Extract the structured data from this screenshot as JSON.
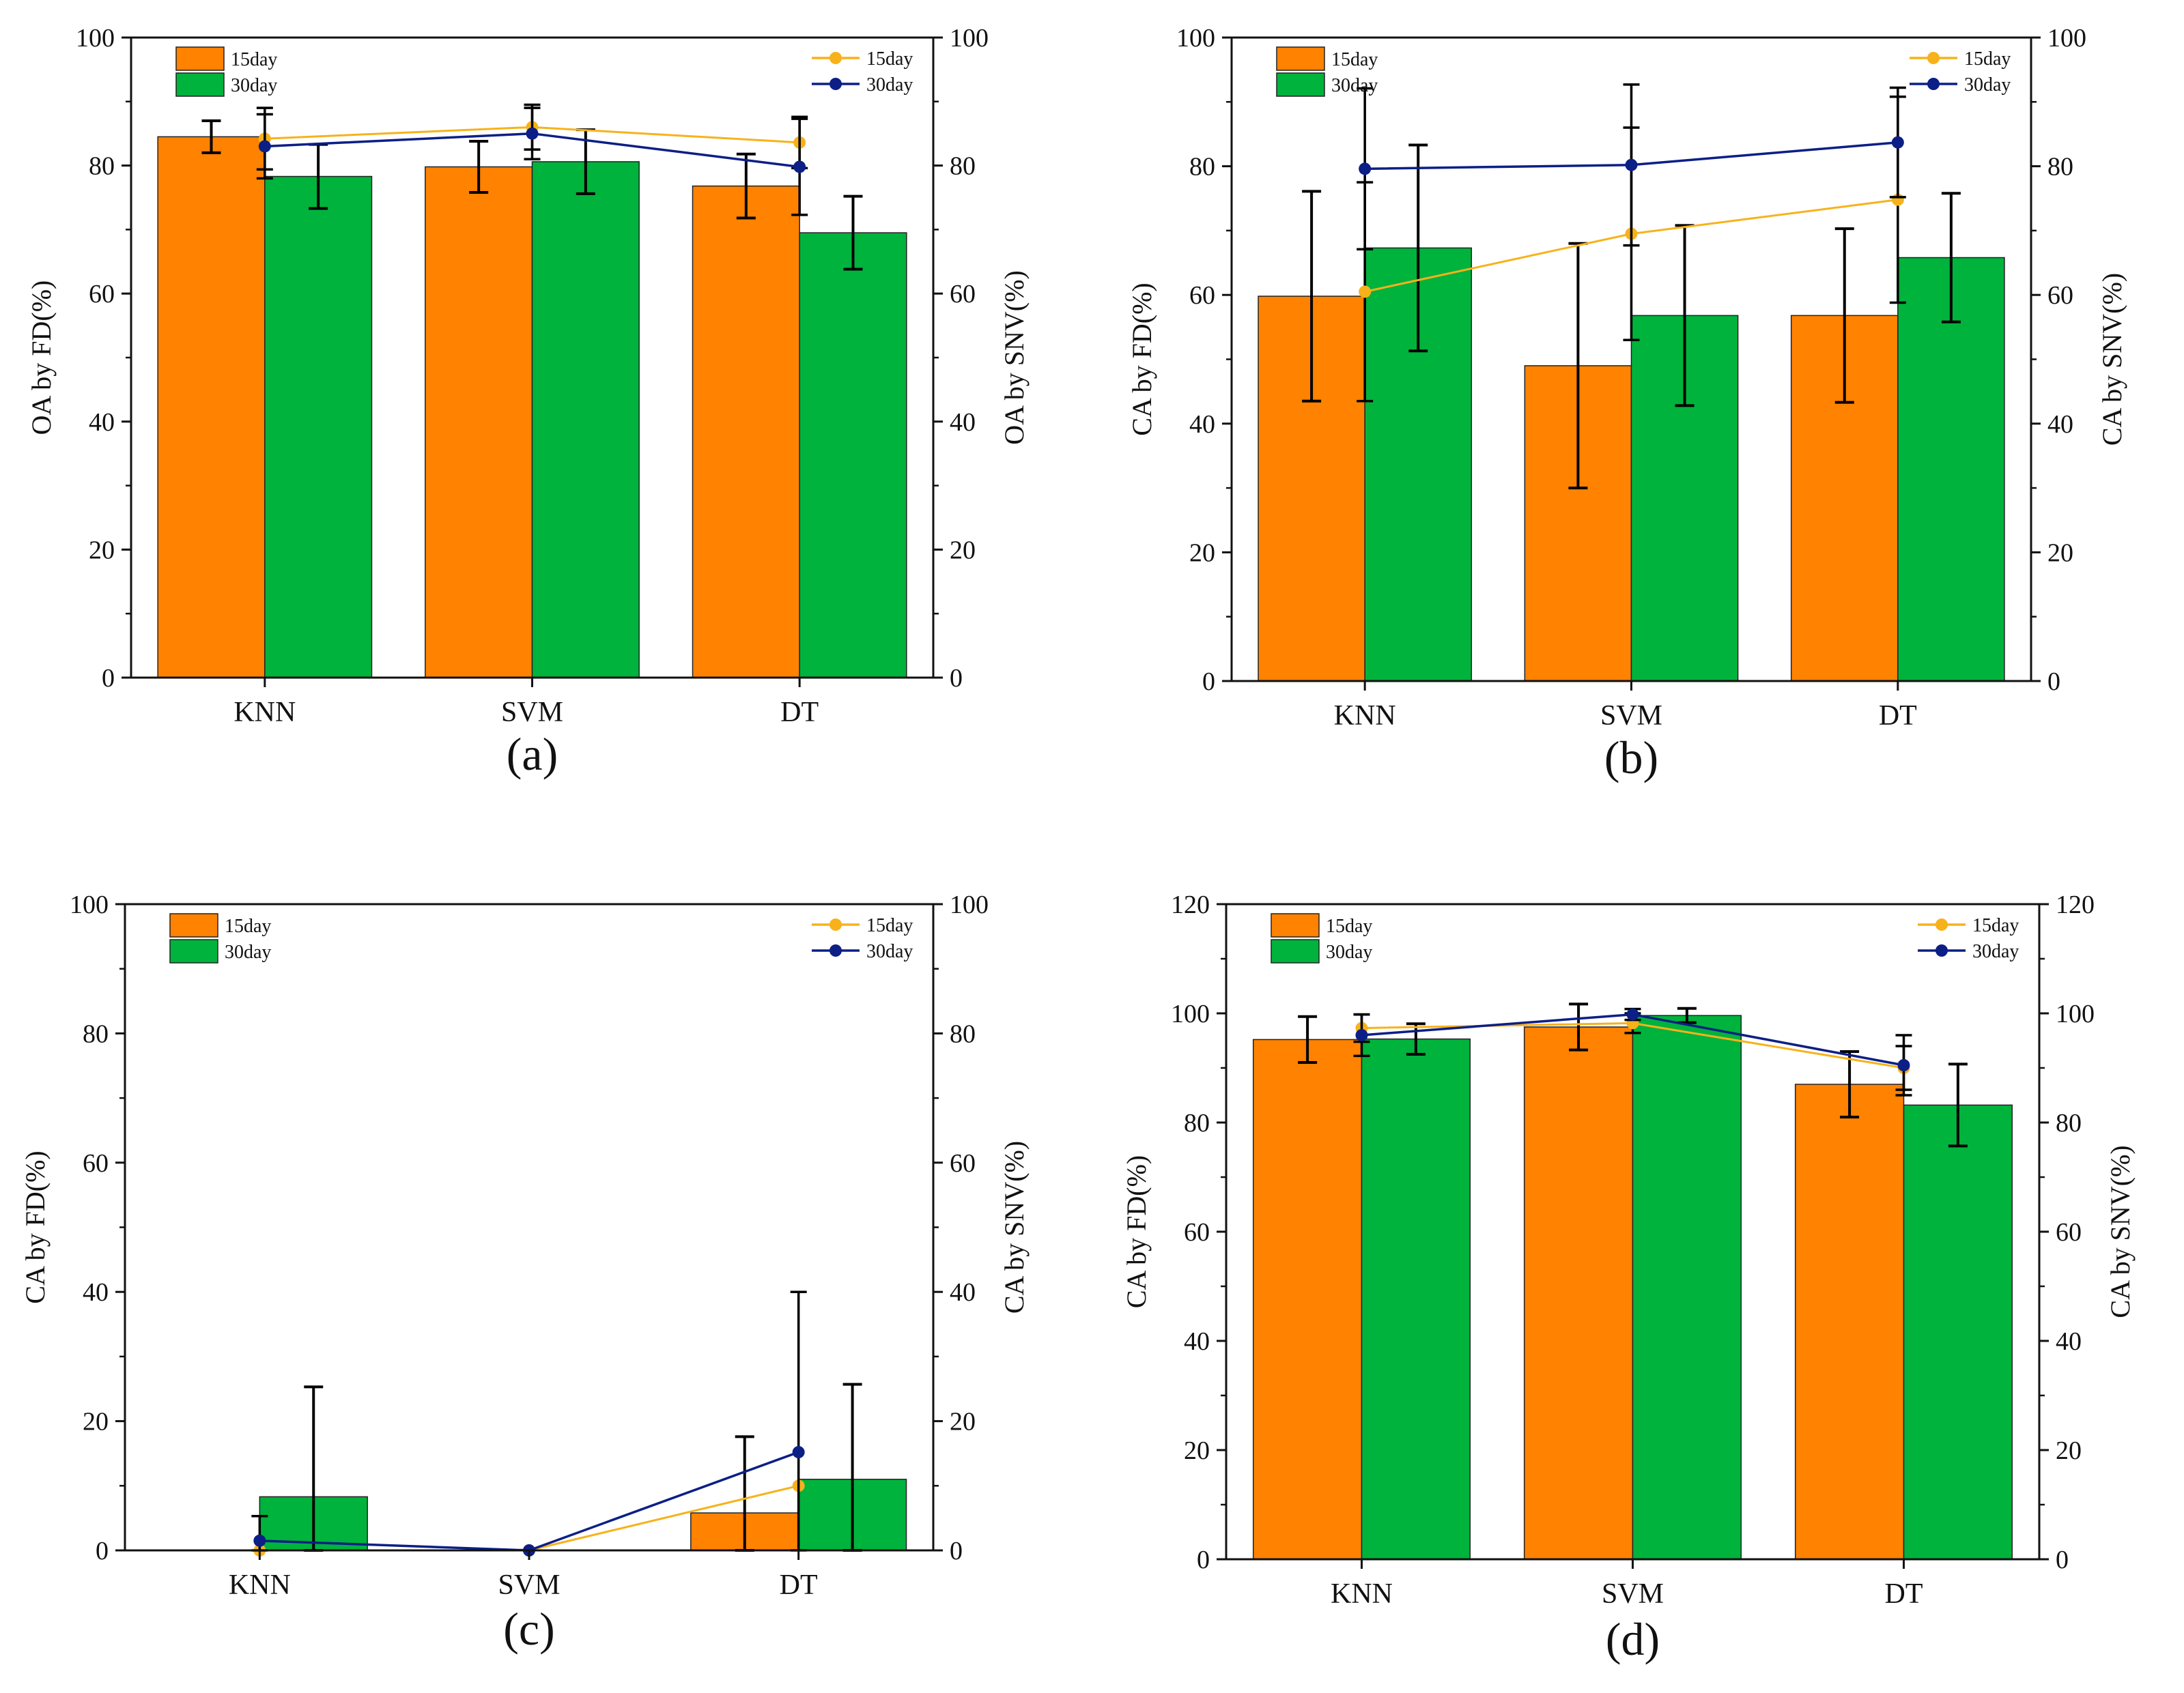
{
  "colors": {
    "bar_15": "#ff8200",
    "bar_30": "#00b33c",
    "line_15": "#f7b21b",
    "line_30": "#0c1f86",
    "axis": "#111111"
  },
  "chart_data": [
    {
      "type": "bar",
      "panel_label": "(a)",
      "categories": [
        "KNN",
        "SVM",
        "DT"
      ],
      "ylabel_left": "OA by FD(%)",
      "ylabel_right": "OA by SNV(%)",
      "ylim_left": [
        0,
        100
      ],
      "ylim_right": [
        0,
        100
      ],
      "yticks": [
        0,
        20,
        40,
        60,
        80,
        100
      ],
      "bar_legend": [
        "15day",
        "30day"
      ],
      "line_legend": [
        "15day",
        "30day"
      ],
      "bar_series": [
        {
          "name": "15day",
          "values": [
            84.5,
            79.8,
            76.8
          ],
          "errors": [
            2.5,
            4.0,
            5.0
          ]
        },
        {
          "name": "30day",
          "values": [
            78.3,
            80.6,
            69.5
          ],
          "errors": [
            5.0,
            5.0,
            5.7
          ]
        }
      ],
      "line_series": [
        {
          "name": "15day",
          "values": [
            84.2,
            86.0,
            83.6
          ],
          "errors": [
            4.8,
            3.5,
            4.0
          ]
        },
        {
          "name": "30day",
          "values": [
            83.0,
            85.0,
            79.8
          ],
          "errors": [
            5.0,
            4.0,
            7.5
          ]
        }
      ]
    },
    {
      "type": "bar",
      "panel_label": "(b)",
      "categories": [
        "KNN",
        "SVM",
        "DT"
      ],
      "ylabel_left": "CA by FD(%)",
      "ylabel_right": "CA by SNV(%)",
      "ylim_left": [
        0,
        100
      ],
      "ylim_right": [
        0,
        100
      ],
      "yticks": [
        0,
        20,
        40,
        60,
        80,
        100
      ],
      "bar_legend": [
        "15day",
        "30day"
      ],
      "line_legend": [
        "15day",
        "30day"
      ],
      "bar_series": [
        {
          "name": "15day",
          "values": [
            59.8,
            49.0,
            56.8
          ],
          "errors": [
            16.3,
            19.0,
            13.5
          ]
        },
        {
          "name": "30day",
          "values": [
            67.3,
            56.8,
            65.8
          ],
          "errors": [
            16.0,
            14.0,
            10.0
          ]
        }
      ],
      "line_series": [
        {
          "name": "15day",
          "values": [
            60.5,
            69.5,
            74.8
          ],
          "errors": [
            17.0,
            16.5,
            16.0
          ]
        },
        {
          "name": "30day",
          "values": [
            79.6,
            80.2,
            83.7
          ],
          "errors": [
            12.5,
            12.5,
            8.5
          ]
        }
      ]
    },
    {
      "type": "bar",
      "panel_label": "(c)",
      "categories": [
        "KNN",
        "SVM",
        "DT"
      ],
      "ylabel_left": "CA by FD(%)",
      "ylabel_right": "CA by SNV(%)",
      "ylim_left": [
        0,
        100
      ],
      "ylim_right": [
        0,
        100
      ],
      "yticks": [
        0,
        20,
        40,
        60,
        80,
        100
      ],
      "bar_legend": [
        "15day",
        "30day"
      ],
      "line_legend": [
        "15day",
        "30day"
      ],
      "bar_series": [
        {
          "name": "15day",
          "values": [
            0,
            0,
            5.8
          ],
          "errors": [
            0,
            0,
            11.8
          ]
        },
        {
          "name": "30day",
          "values": [
            8.3,
            0,
            11.0
          ],
          "errors": [
            17.0,
            0,
            14.7
          ]
        }
      ],
      "line_series": [
        {
          "name": "15day",
          "values": [
            0,
            0,
            10.0
          ],
          "errors": [
            0,
            0,
            0
          ]
        },
        {
          "name": "30day",
          "values": [
            1.5,
            0,
            15.2
          ],
          "errors": [
            3.8,
            0,
            24.8
          ]
        }
      ]
    },
    {
      "type": "bar",
      "panel_label": "(d)",
      "categories": [
        "KNN",
        "SVM",
        "DT"
      ],
      "ylabel_left": "CA by FD(%)",
      "ylabel_right": "CA by SNV(%)",
      "ylim_left": [
        0,
        120
      ],
      "ylim_right": [
        0,
        120
      ],
      "yticks": [
        0,
        20,
        40,
        60,
        80,
        100,
        120
      ],
      "bar_legend": [
        "15day",
        "30day"
      ],
      "line_legend": [
        "15day",
        "30day"
      ],
      "bar_series": [
        {
          "name": "15day",
          "values": [
            95.2,
            97.5,
            87.0
          ],
          "errors": [
            4.2,
            4.2,
            6.0
          ]
        },
        {
          "name": "30day",
          "values": [
            95.3,
            99.6,
            83.2
          ],
          "errors": [
            2.8,
            1.3,
            7.5
          ]
        }
      ],
      "line_series": [
        {
          "name": "15day",
          "values": [
            97.3,
            98.2,
            90.0
          ],
          "errors": [
            2.5,
            1.8,
            4.0
          ]
        },
        {
          "name": "30day",
          "values": [
            96.0,
            99.8,
            90.5
          ],
          "errors": [
            3.8,
            1.0,
            5.5
          ]
        }
      ]
    }
  ]
}
